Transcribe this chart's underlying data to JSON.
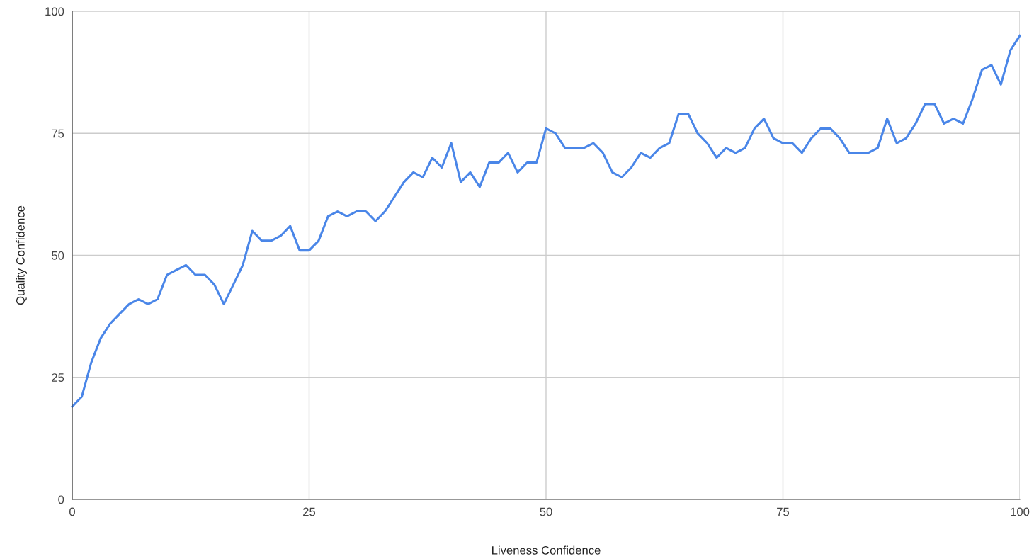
{
  "chart_data": {
    "type": "line",
    "xlabel": "Liveness Confidence",
    "ylabel": "Quality Confidence",
    "x": [
      0,
      1,
      2,
      3,
      4,
      5,
      6,
      7,
      8,
      9,
      10,
      11,
      12,
      13,
      14,
      15,
      16,
      17,
      18,
      19,
      20,
      21,
      22,
      23,
      24,
      25,
      26,
      27,
      28,
      29,
      30,
      31,
      32,
      33,
      34,
      35,
      36,
      37,
      38,
      39,
      40,
      41,
      42,
      43,
      44,
      45,
      46,
      47,
      48,
      49,
      50,
      51,
      52,
      53,
      54,
      55,
      56,
      57,
      58,
      59,
      60,
      61,
      62,
      63,
      64,
      65,
      66,
      67,
      68,
      69,
      70,
      71,
      72,
      73,
      74,
      75,
      76,
      77,
      78,
      79,
      80,
      81,
      82,
      83,
      84,
      85,
      86,
      87,
      88,
      89,
      90,
      91,
      92,
      93,
      94,
      95,
      96,
      97,
      98,
      99,
      100
    ],
    "series": [
      {
        "color": "#4a86e8",
        "values": [
          19,
          21,
          28,
          33,
          36,
          38,
          40,
          41,
          40,
          41,
          46,
          47,
          48,
          46,
          46,
          44,
          40,
          44,
          48,
          55,
          53,
          53,
          54,
          56,
          51,
          51,
          53,
          58,
          59,
          58,
          59,
          59,
          57,
          59,
          62,
          65,
          67,
          66,
          70,
          68,
          73,
          65,
          67,
          64,
          69,
          69,
          71,
          67,
          69,
          69,
          76,
          75,
          72,
          72,
          72,
          73,
          71,
          67,
          66,
          68,
          71,
          70,
          72,
          73,
          79,
          79,
          75,
          73,
          70,
          72,
          71,
          72,
          76,
          78,
          74,
          73,
          73,
          71,
          74,
          76,
          76,
          74,
          71,
          71,
          71,
          72,
          78,
          73,
          74,
          77,
          81,
          81,
          77,
          78,
          77,
          82,
          88,
          89,
          85,
          92,
          95
        ]
      }
    ],
    "xlim": [
      0,
      100
    ],
    "xticks": [
      0,
      25,
      50,
      75,
      100
    ],
    "ylim": [
      0,
      100
    ],
    "yticks": [
      0,
      25,
      50,
      75,
      100
    ],
    "grid": true,
    "marker": "none",
    "line_style": "solid"
  }
}
